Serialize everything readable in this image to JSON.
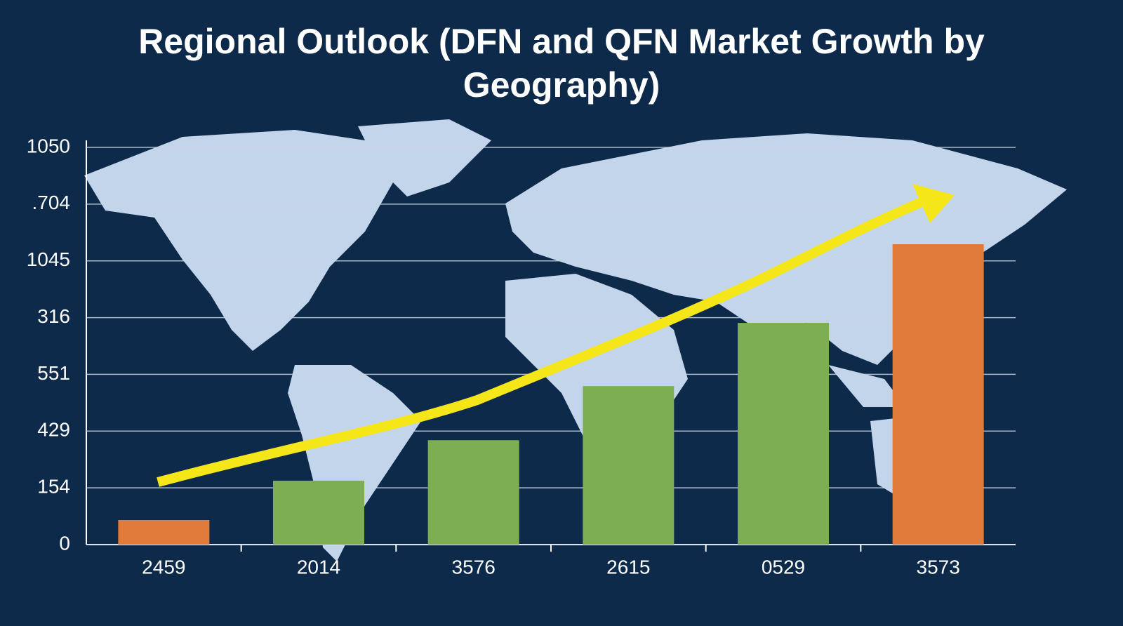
{
  "chart_data": {
    "type": "bar",
    "title": "Regional Outlook (DFN and QFN Market Growth by Geography)",
    "categories": [
      "2459",
      "2014",
      "3576",
      "2615",
      "0529",
      "3573"
    ],
    "values": [
      65,
      169,
      276,
      419,
      586,
      794
    ],
    "colors": [
      "#e07b39",
      "#7dae51",
      "#7dae51",
      "#7dae51",
      "#7dae51",
      "#e07b39"
    ],
    "ylim": [
      0,
      1050
    ],
    "yticks": [
      0,
      {
        "value": 150,
        "label": "154"
      },
      {
        "value": 300,
        "label": "429"
      },
      {
        "value": 450,
        "label": "551"
      },
      {
        "value": 600,
        "label": "316"
      },
      {
        "value": 750,
        "label": "1045"
      },
      {
        "value": 900,
        "label": ".704"
      },
      1050
    ],
    "grid": true
  }
}
